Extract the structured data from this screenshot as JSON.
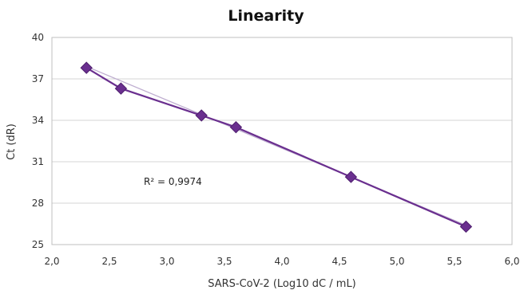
{
  "chart_data": {
    "type": "scatter",
    "title": "Linearity",
    "xlabel": "SARS-CoV-2 (Log10 dC / mL)",
    "ylabel": "Ct (dR)",
    "xlim": [
      2.0,
      6.0
    ],
    "ylim": [
      25,
      40
    ],
    "x_ticks": [
      "2,0",
      "2,5",
      "3,0",
      "3,5",
      "4,0",
      "4,5",
      "5,0",
      "5,5",
      "6,0"
    ],
    "x_tick_values": [
      2.0,
      2.5,
      3.0,
      3.5,
      4.0,
      4.5,
      5.0,
      5.5,
      6.0
    ],
    "y_ticks": [
      "25",
      "28",
      "31",
      "34",
      "37",
      "40"
    ],
    "y_tick_values": [
      25,
      28,
      31,
      34,
      37,
      40
    ],
    "grid": "horizontal",
    "series": [
      {
        "x": [
          2.3,
          2.6,
          3.3,
          3.6,
          4.6,
          5.6
        ],
        "y": [
          37.8,
          36.3,
          34.35,
          33.5,
          29.9,
          26.3
        ]
      }
    ],
    "trendline": {
      "x": [
        2.3,
        5.6
      ],
      "y": [
        37.9,
        26.4
      ]
    },
    "annotation": "R² = 0,9974",
    "colors": {
      "series": "#6a2f8f",
      "marker": "#6a2f8f",
      "trendline": "#bfaed0",
      "grid": "#d4d4d4",
      "axis": "#bfbfbf"
    }
  }
}
